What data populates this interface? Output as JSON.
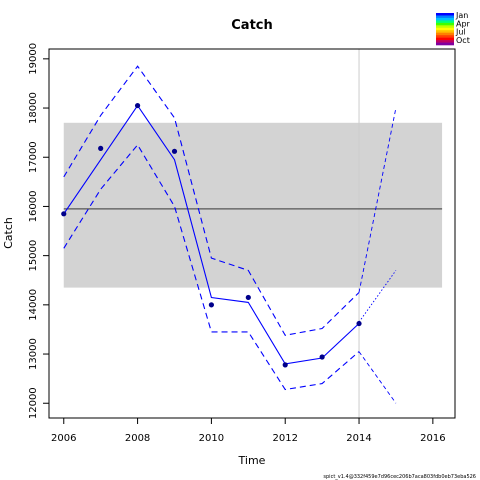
{
  "chart_data": {
    "type": "line",
    "title": "Catch",
    "xlabel": "Time",
    "ylabel": "Catch",
    "xlim": [
      2005.6,
      2016.6
    ],
    "ylim": [
      11700,
      19200
    ],
    "x_ticks": [
      2006,
      2008,
      2010,
      2012,
      2014,
      2016
    ],
    "y_ticks": [
      12000,
      13000,
      14000,
      15000,
      16000,
      17000,
      18000,
      19000
    ],
    "grid": false,
    "band": {
      "x_range": [
        2006,
        2016.25
      ],
      "y_range": [
        14350,
        17700
      ],
      "color": "#d3d3d3"
    },
    "hline": {
      "y": 15950,
      "x_range": [
        2006,
        2016.25
      ],
      "color": "#555555"
    },
    "vline": {
      "x": 2014,
      "color": "#cccccc"
    },
    "observations": {
      "x": [
        2006,
        2007,
        2008,
        2009,
        2010,
        2011,
        2012,
        2013,
        2014
      ],
      "y": [
        15850,
        17180,
        18050,
        17120,
        14000,
        14150,
        12780,
        12940,
        13620
      ],
      "color": "#00008b"
    },
    "series": [
      {
        "x": [
          2006,
          2008,
          2009,
          2010,
          2011,
          2012,
          2013,
          2014
        ],
        "y": [
          15850,
          18050,
          16950,
          14150,
          14050,
          12800,
          12920,
          13620
        ],
        "color": "#0000ff",
        "style": "solid"
      },
      {
        "x": [
          2006,
          2007,
          2008,
          2009,
          2010,
          2011,
          2012,
          2013,
          2014
        ],
        "y": [
          16600,
          17850,
          18850,
          17800,
          14950,
          14700,
          13380,
          13520,
          14250
        ],
        "color": "#0000ff",
        "style": "dashed"
      },
      {
        "x": [
          2006,
          2007,
          2008,
          2009,
          2010,
          2011,
          2012,
          2013,
          2014
        ],
        "y": [
          15150,
          16350,
          17250,
          16000,
          13450,
          13450,
          12280,
          12400,
          13050
        ],
        "color": "#0000ff",
        "style": "dashed"
      },
      {
        "x": [
          2014,
          2015
        ],
        "y": [
          13650,
          14700
        ],
        "color": "#0000ff",
        "style": "dotted"
      },
      {
        "x": [
          2014,
          2015
        ],
        "y": [
          14250,
          18000
        ],
        "color": "#0000ff",
        "style": "dashed-thin"
      },
      {
        "x": [
          2014,
          2015
        ],
        "y": [
          13050,
          12000
        ],
        "color": "#0000ff",
        "style": "dashed-thin"
      }
    ],
    "legend": {
      "position": "top-right",
      "entries": [
        "Jan",
        "Apr",
        "Jul",
        "Oct"
      ],
      "gradient": [
        "#0000ff",
        "#0080ff",
        "#00c0ff",
        "#00ff80",
        "#40ff00",
        "#c0ff00",
        "#ffff00",
        "#ffc000",
        "#ff8000",
        "#ff4000",
        "#ff0000",
        "#c00060",
        "#8000a0"
      ]
    },
    "footer": "spict_v1.4@332f459e7d96cec206b7aca803fdb0eb73eba526"
  }
}
